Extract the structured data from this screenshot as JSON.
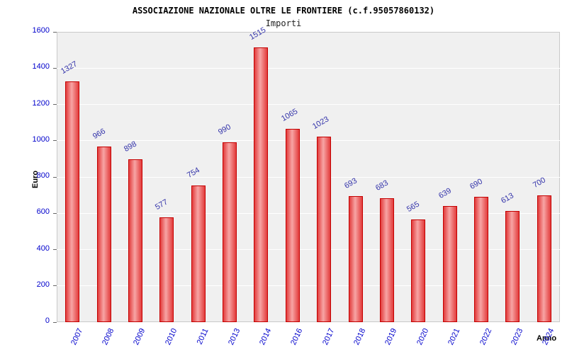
{
  "chart_data": {
    "type": "bar",
    "title": "ASSOCIAZIONE NAZIONALE OLTRE LE FRONTIERE (c.f.95057860132)",
    "subtitle": "Importi",
    "categories": [
      "2007",
      "2008",
      "2009",
      "2010",
      "2011",
      "2013",
      "2014",
      "2016",
      "2017",
      "2018",
      "2019",
      "2020",
      "2021",
      "2022",
      "2023",
      "2024"
    ],
    "values": [
      1327,
      966,
      898,
      577,
      754,
      990,
      1515,
      1065,
      1023,
      693,
      683,
      565,
      639,
      690,
      613,
      700
    ],
    "xlabel": "Anno",
    "ylabel": "Euro",
    "ylim": [
      0,
      1600
    ],
    "ytick_step": 200,
    "grid": true,
    "legend": "none",
    "colors": {
      "bar_fill_edge": "#e23b3b",
      "bar_fill_center": "#f7a5a5",
      "bar_border": "#c40000",
      "tick_label": "#0000cc",
      "value_label": "#3333aa",
      "plot_background": "#f0f0f0",
      "grid_line": "#ffffff",
      "title_color": "#000000"
    }
  }
}
